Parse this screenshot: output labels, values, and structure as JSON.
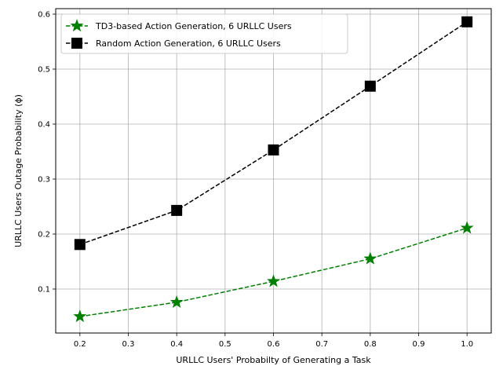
{
  "chart_data": {
    "type": "line",
    "xlabel": "URLLC Users' Probabilty of Generating a Task",
    "ylabel": "URLLC Users Outage Probability (ϕ)",
    "xlim": [
      0.15,
      1.05
    ],
    "ylim": [
      0.02,
      0.61
    ],
    "xticks": [
      0.2,
      0.3,
      0.4,
      0.5,
      0.6,
      0.7,
      0.8,
      0.9,
      1.0
    ],
    "xtick_labels": [
      "0.2",
      "0.3",
      "0.4",
      "0.5",
      "0.6",
      "0.7",
      "0.8",
      "0.9",
      "1.0"
    ],
    "yticks": [
      0.1,
      0.2,
      0.3,
      0.4,
      0.5,
      0.6
    ],
    "ytick_labels": [
      "0.1",
      "0.2",
      "0.3",
      "0.4",
      "0.5",
      "0.6"
    ],
    "grid": true,
    "legend_position": "top-left",
    "x": [
      0.2,
      0.4,
      0.6,
      0.8,
      1.0
    ],
    "series": [
      {
        "name": "TD3-based Action Generation, 6 URLLC Users",
        "values": [
          0.05,
          0.076,
          0.114,
          0.155,
          0.211
        ],
        "color": "#008000",
        "marker": "star",
        "line": "dashed"
      },
      {
        "name": "Random Action Generation, 6 URLLC Users",
        "values": [
          0.181,
          0.243,
          0.353,
          0.469,
          0.586
        ],
        "color": "#000000",
        "marker": "square",
        "line": "dashed"
      }
    ]
  }
}
